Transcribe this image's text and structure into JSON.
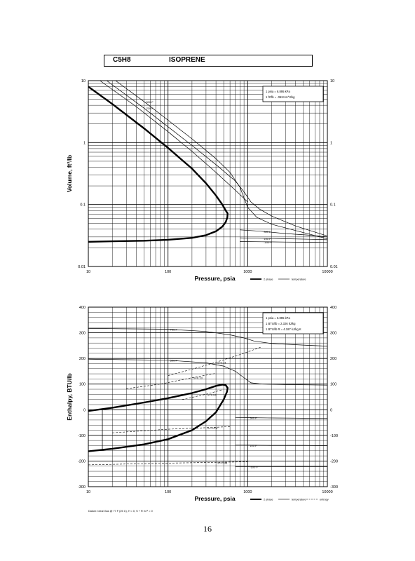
{
  "title": {
    "formula": "C5H8",
    "name": "ISOPRENE"
  },
  "page_number": "16",
  "chart_data": [
    {
      "type": "line",
      "xscale": "log",
      "yscale": "log",
      "xlim": [
        10,
        10000
      ],
      "ylim": [
        0.01,
        10
      ],
      "xlabel": "Pressure,  psia",
      "ylabel": "Volume, ft^3/lb",
      "xticks": [
        "10",
        "100",
        "1000",
        "10000"
      ],
      "yticks": [
        "0.01",
        "0.1",
        "1",
        "10"
      ],
      "conversion_box": [
        "1 psia = 6.895 kPa",
        "1 ft^3/lb = .0624 m^3/kg"
      ],
      "legend": [
        "2 phase",
        "temperature"
      ],
      "series": [
        {
          "name": "2 phase",
          "style": "bold",
          "x": [
            10,
            20,
            50,
            100,
            200,
            300,
            400,
            480,
            530,
            560,
            555,
            530,
            480,
            400,
            300,
            200,
            100,
            50,
            20,
            10
          ],
          "y": [
            8,
            4.2,
            1.7,
            0.82,
            0.38,
            0.22,
            0.14,
            0.1,
            0.08,
            0.072,
            0.062,
            0.052,
            0.044,
            0.037,
            0.032,
            0.029,
            0.027,
            0.026,
            0.0255,
            0.025
          ]
        },
        {
          "label": "",
          "x": [
            14,
            40,
            100,
            200,
            400,
            700,
            1000
          ],
          "y": [
            10,
            3.8,
            1.5,
            0.72,
            0.33,
            0.17,
            0.11
          ]
        },
        {
          "label": "700 F",
          "x": [
            17,
            50,
            100,
            200,
            400,
            700,
            900,
            1100,
            1400,
            2000,
            4000,
            10000
          ],
          "y": [
            10,
            3.6,
            1.8,
            0.9,
            0.44,
            0.24,
            0.16,
            0.11,
            0.085,
            0.065,
            0.045,
            0.031
          ]
        },
        {
          "label": "500 F",
          "x": [
            22,
            50,
            100,
            200,
            400,
            600,
            800,
            1000,
            1300,
            2000,
            4000,
            10000
          ],
          "y": [
            10,
            4.6,
            2.3,
            1.15,
            0.55,
            0.33,
            0.19,
            0.09,
            0.062,
            0.048,
            0.038,
            0.028
          ]
        },
        {
          "label": "300 F",
          "x": [
            800,
            1500,
            3000,
            6000,
            10000
          ],
          "y": [
            0.039,
            0.037,
            0.034,
            0.032,
            0.03
          ]
        },
        {
          "label": "100 F",
          "x": [
            800,
            1500,
            3000,
            6000,
            10000
          ],
          "y": [
            0.029,
            0.0285,
            0.028,
            0.0275,
            0.027
          ]
        },
        {
          "label": "-100 F",
          "x": [
            800,
            1500,
            3000,
            6000,
            10000
          ],
          "y": [
            0.0252,
            0.025,
            0.0248,
            0.0246,
            0.0244
          ]
        }
      ]
    },
    {
      "type": "line",
      "xscale": "log",
      "xlim": [
        10,
        10000
      ],
      "ylim": [
        -300,
        400
      ],
      "xlabel": "Pressure,  psia",
      "ylabel": "Enthalpy, BTU/lb",
      "xticks": [
        "10",
        "100",
        "1000",
        "10000"
      ],
      "yticks": [
        "-300",
        "-200",
        "-100",
        "0",
        "100",
        "200",
        "300",
        "400"
      ],
      "conversion_box": [
        "1 psia = 6.895 kPa",
        "1 BTU/lb = 2.326 kJ/kg",
        "1 BTU/lb R = 4.187 kJ/kg K"
      ],
      "footnote": "Datum: Ideal Gas @ 77 F (25 C),  H = 0,  S + R ln P = 0",
      "legend": [
        "2 phase",
        "temperature",
        "entropy"
      ],
      "series": [
        {
          "name": "2 phase",
          "style": "bold",
          "x": [
            10,
            20,
            50,
            100,
            200,
            300,
            400,
            480,
            530,
            560,
            550,
            500,
            400,
            300,
            200,
            100,
            50,
            20,
            10
          ],
          "y": [
            -5,
            8,
            28,
            45,
            65,
            80,
            93,
            98,
            96,
            85,
            70,
            40,
            -10,
            -45,
            -80,
            -115,
            -135,
            -152,
            -162
          ]
        },
        {
          "label": "700 F",
          "x": [
            10,
            100,
            300,
            600,
            900,
            1200,
            2000,
            5000,
            10000
          ],
          "y": [
            317,
            314,
            305,
            292,
            280,
            268,
            258,
            252,
            248
          ]
        },
        {
          "label": "500 F",
          "x": [
            10,
            100,
            300,
            500,
            700,
            900,
            1100,
            1500,
            3000,
            10000
          ],
          "y": [
            197,
            193,
            183,
            170,
            150,
            125,
            105,
            100,
            98,
            96
          ]
        },
        {
          "label": "300 F",
          "x": [
            700,
            1000,
            2000,
            5000,
            10000
          ],
          "y": [
            -30,
            -31,
            -32,
            -33,
            -34
          ]
        },
        {
          "label": "100 F",
          "x": [
            700,
            1000,
            2000,
            5000,
            10000
          ],
          "y": [
            -138,
            -138,
            -139,
            -139,
            -140
          ]
        },
        {
          "label": "-100 F",
          "x": [
            700,
            1000,
            2000,
            5000,
            10000
          ],
          "y": [
            -222,
            -222,
            -222,
            -222,
            -222
          ]
        },
        {
          "label": "S=0.21",
          "style": "dash",
          "x": [
            100,
            200,
            400,
            800,
            1500
          ],
          "y": [
            133,
            158,
            185,
            215,
            245
          ]
        },
        {
          "label": "S=0.13",
          "style": "dash",
          "x": [
            30,
            80,
            200,
            400
          ],
          "y": [
            82,
            100,
            125,
            142
          ]
        },
        {
          "label": "S=0.04",
          "style": "dash",
          "x": [
            150,
            300,
            480
          ],
          "y": [
            40,
            60,
            78
          ]
        },
        {
          "label": "S=-0.18",
          "style": "dash",
          "x": [
            20,
            100,
            300,
            600
          ],
          "y": [
            -90,
            -76,
            -70,
            -66
          ]
        },
        {
          "label": "S=-0.38",
          "style": "dash",
          "x": [
            10,
            100,
            400,
            1000
          ],
          "y": [
            -215,
            -208,
            -205,
            -203
          ]
        }
      ],
      "tie_lines_x": [
        15,
        200
      ]
    }
  ]
}
